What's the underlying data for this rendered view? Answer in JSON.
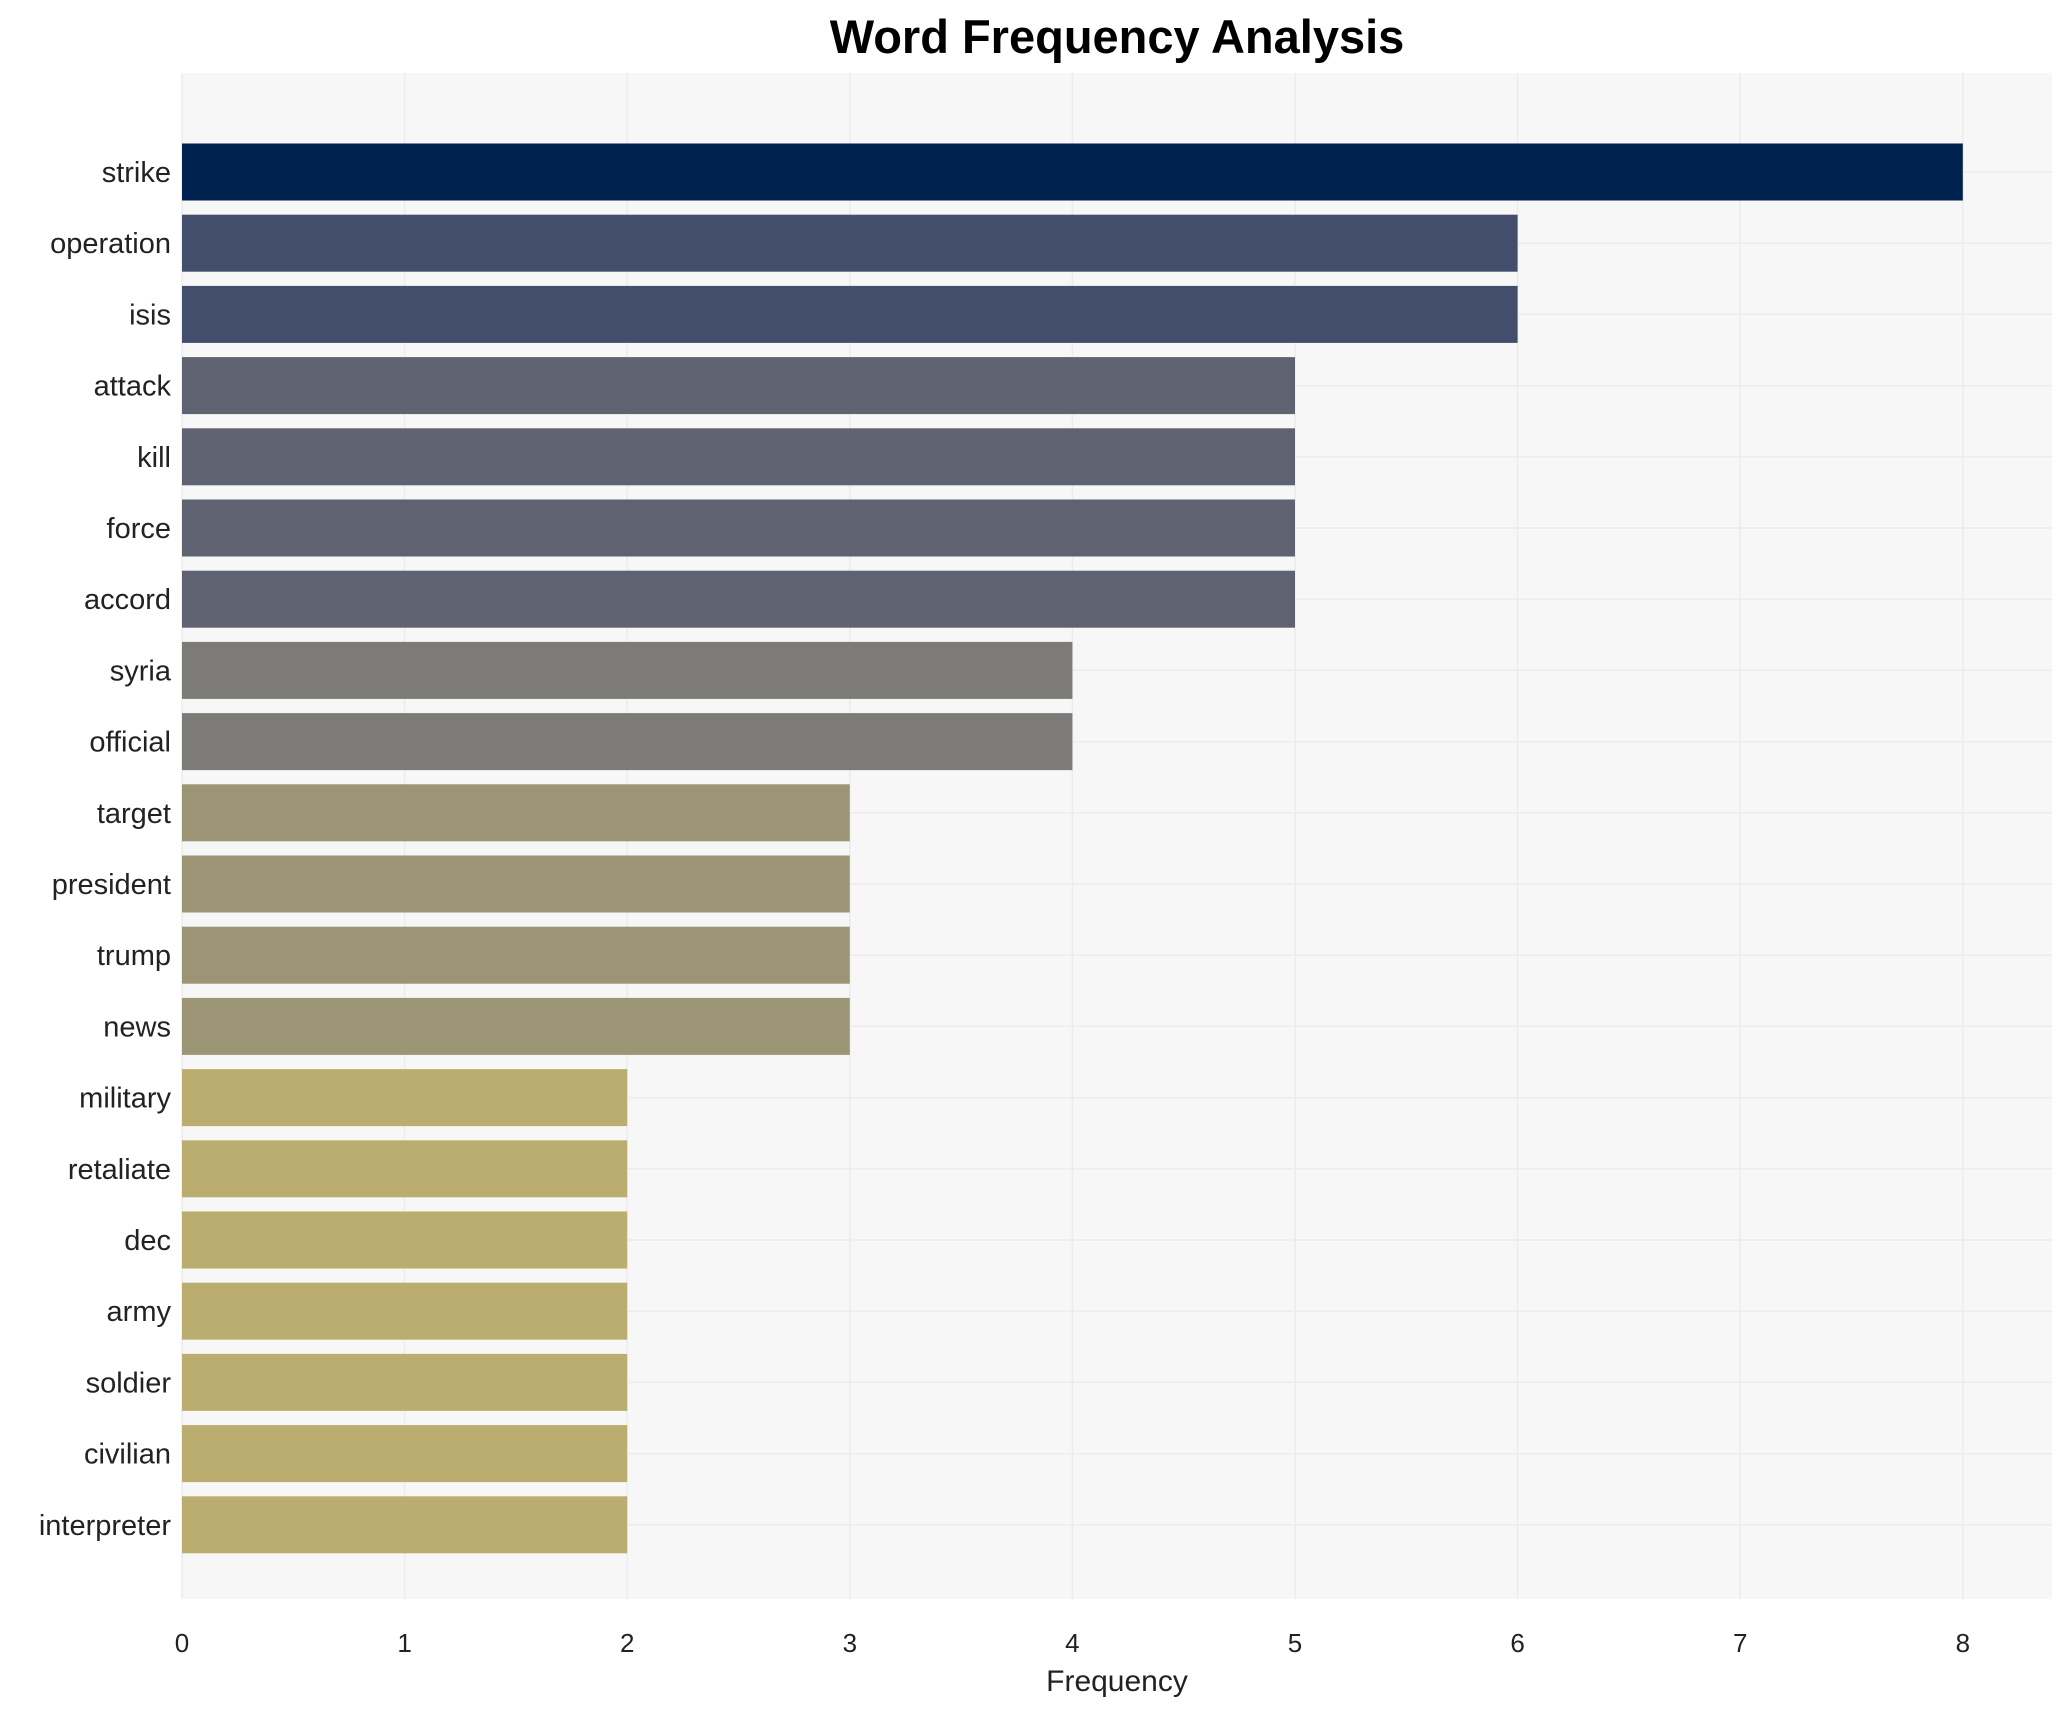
{
  "chart_data": {
    "type": "bar",
    "orientation": "horizontal",
    "title": "Word Frequency Analysis",
    "xlabel": "Frequency",
    "ylabel": "",
    "xlim": [
      0,
      8.4
    ],
    "xticks": [
      0,
      1,
      2,
      3,
      4,
      5,
      6,
      7,
      8
    ],
    "grid": true,
    "categories": [
      "strike",
      "operation",
      "isis",
      "attack",
      "kill",
      "force",
      "accord",
      "syria",
      "official",
      "target",
      "president",
      "trump",
      "news",
      "military",
      "retaliate",
      "dec",
      "army",
      "soldier",
      "civilian",
      "interpreter"
    ],
    "values": [
      8,
      6,
      6,
      5,
      5,
      5,
      5,
      4,
      4,
      3,
      3,
      3,
      3,
      2,
      2,
      2,
      2,
      2,
      2,
      2
    ],
    "colors_by_value": {
      "8": "#00224e",
      "6": "#434e6c",
      "5": "#5f6371",
      "4": "#7c7b78",
      "3": "#9b9475",
      "2": "#bbad6f"
    }
  }
}
